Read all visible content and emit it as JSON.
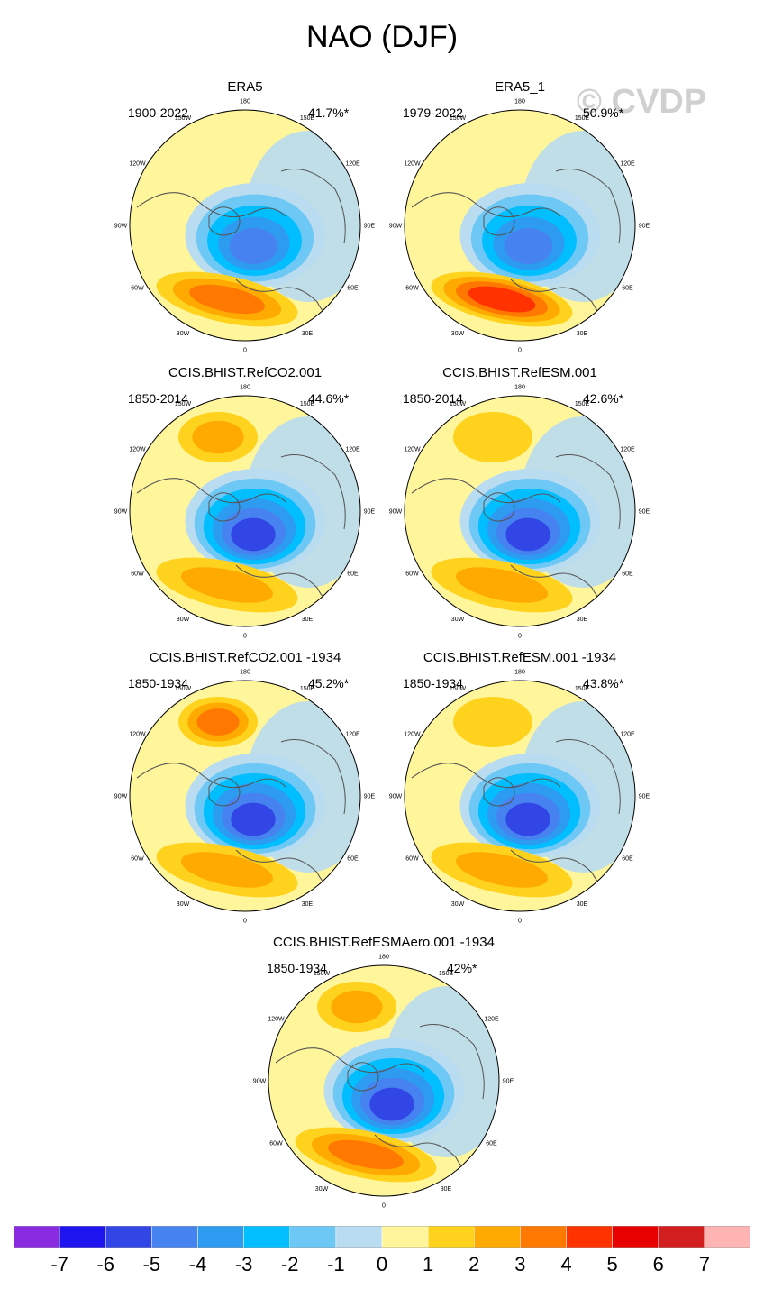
{
  "figure": {
    "title": "NAO (DJF)",
    "watermark": "© CVDP"
  },
  "chart_data": {
    "type": "heatmap",
    "projection": "north polar stereographic",
    "variable": "NAO (DJF) sea level pressure regression pattern",
    "panels": [
      {
        "name": "ERA5",
        "period": "1900-2022",
        "pct": "41.7%*",
        "high_lobe_level": 4,
        "low_lobe_level": -5,
        "pacific_high_level": 0
      },
      {
        "name": "ERA5_1",
        "period": "1979-2022",
        "pct": "50.9%*",
        "high_lobe_level": 5,
        "low_lobe_level": -5,
        "pacific_high_level": 0
      },
      {
        "name": "CCIS.BHIST.RefCO2.001",
        "period": "1850-2014",
        "pct": "44.6%*",
        "high_lobe_level": 3,
        "low_lobe_level": -6,
        "pacific_high_level": 3
      },
      {
        "name": "CCIS.BHIST.RefESM.001",
        "period": "1850-2014",
        "pct": "42.6%*",
        "high_lobe_level": 3,
        "low_lobe_level": -6,
        "pacific_high_level": 2
      },
      {
        "name": "CCIS.BHIST.RefCO2.001 -1934",
        "period": "1850-1934",
        "pct": "45.2%*",
        "high_lobe_level": 3,
        "low_lobe_level": -6,
        "pacific_high_level": 4
      },
      {
        "name": "CCIS.BHIST.RefESM.001 -1934",
        "period": "1850-1934",
        "pct": "43.8%*",
        "high_lobe_level": 3,
        "low_lobe_level": -6,
        "pacific_high_level": 2
      },
      {
        "name": "CCIS.BHIST.RefESMAero.001 -1934",
        "period": "1850-1934",
        "pct": "42%*",
        "high_lobe_level": 4,
        "low_lobe_level": -6,
        "pacific_high_level": 3
      }
    ],
    "longitude_labels": [
      "180",
      "150E",
      "120E",
      "90E",
      "60E",
      "30E",
      "0",
      "30W",
      "60W",
      "90W",
      "120W",
      "150W"
    ],
    "colorbar": {
      "tick_labels": [
        "-7",
        "-6",
        "-5",
        "-4",
        "-3",
        "-2",
        "-1",
        "0",
        "1",
        "2",
        "3",
        "4",
        "5",
        "6",
        "7"
      ],
      "colors": [
        "#8a2be2",
        "#1e14f0",
        "#3246e6",
        "#4682f0",
        "#2d9bf0",
        "#00beff",
        "#6ec8f5",
        "#b9dcf0",
        "#fff59b",
        "#ffd21e",
        "#ffaa00",
        "#ff7800",
        "#ff3200",
        "#e60000",
        "#d21e1e",
        "#ffb4b4"
      ]
    }
  }
}
